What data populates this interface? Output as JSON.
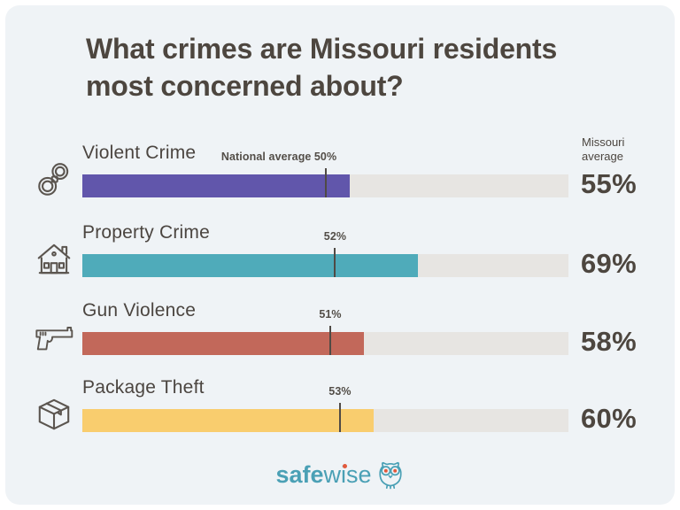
{
  "title": "What crimes are Missouri residents most concerned about?",
  "chart_data": {
    "type": "bar",
    "orientation": "horizontal",
    "title": "What crimes are Missouri residents most concerned about?",
    "value_unit": "%",
    "axis_range": [
      0,
      100
    ],
    "grid": false,
    "categories": [
      "Violent Crime",
      "Property Crime",
      "Gun Violence",
      "Package Theft"
    ],
    "series": [
      {
        "name": "Missouri average",
        "values": [
          55,
          69,
          58,
          60
        ]
      },
      {
        "name": "National average",
        "values": [
          50,
          52,
          51,
          53
        ]
      }
    ],
    "legend": {
      "missouri_header_line1": "Missouri",
      "missouri_header_line2": "average",
      "national_average_prefix": "National average"
    },
    "rows": [
      {
        "label": "Violent Crime",
        "icon": "handcuffs-icon",
        "bar_color": "#6156AB",
        "missouri_pct": 55,
        "missouri_label": "55%",
        "national_pct": 50,
        "national_label": "50%",
        "national_prefix": "National average"
      },
      {
        "label": "Property Crime",
        "icon": "house-icon",
        "bar_color": "#4FABBA",
        "missouri_pct": 69,
        "missouri_label": "69%",
        "national_pct": 52,
        "national_label": "52%",
        "national_prefix": ""
      },
      {
        "label": "Gun Violence",
        "icon": "pistol-icon",
        "bar_color": "#C2685A",
        "missouri_pct": 58,
        "missouri_label": "58%",
        "national_pct": 51,
        "national_label": "51%",
        "national_prefix": ""
      },
      {
        "label": "Package Theft",
        "icon": "package-icon",
        "bar_color": "#F9CD6E",
        "missouri_pct": 60,
        "missouri_label": "60%",
        "national_pct": 53,
        "national_label": "53%",
        "national_prefix": ""
      }
    ]
  },
  "footer": {
    "brand_bold": "safe",
    "brand_light": "wise",
    "logo_icon": "owl-icon"
  },
  "colors": {
    "card_bg": "#EFF3F6",
    "frame_bg": "#FFFFFF",
    "bar_track": "#E7E5E2",
    "text_dark": "#4D463F",
    "tick": "#4F4A45",
    "bar_violent": "#6156AB",
    "bar_property": "#4FABBA",
    "bar_gun": "#C2685A",
    "bar_package": "#F9CD6E",
    "brand_teal": "#4AA0B5",
    "brand_accent": "#E2593C",
    "icon_stroke": "#5B554F"
  }
}
